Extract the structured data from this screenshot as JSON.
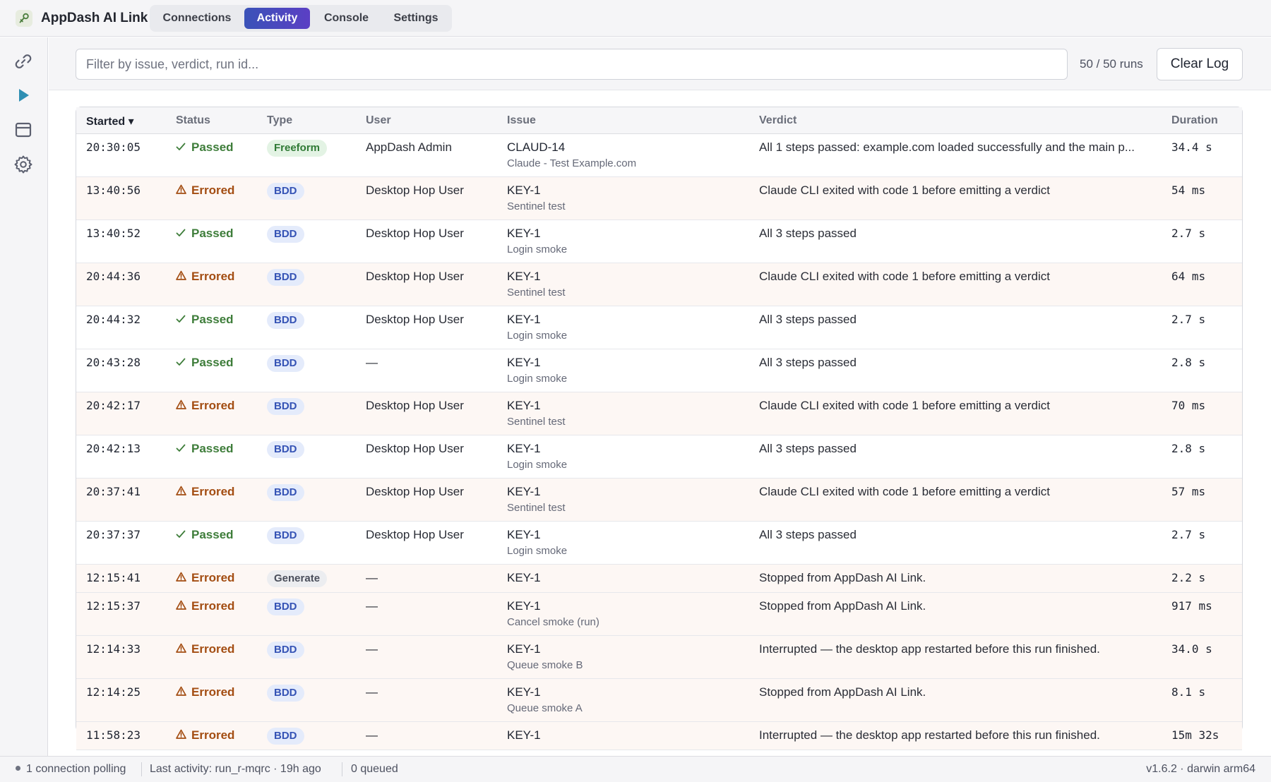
{
  "app": {
    "title": "AppDash AI Link"
  },
  "nav": {
    "tabs": [
      {
        "label": "Connections",
        "active": false
      },
      {
        "label": "Activity",
        "active": true
      },
      {
        "label": "Console",
        "active": false
      },
      {
        "label": "Settings",
        "active": false
      }
    ]
  },
  "sidebar": {
    "items": [
      {
        "icon": "link-icon",
        "active": false
      },
      {
        "icon": "play-icon",
        "active": true
      },
      {
        "icon": "window-icon",
        "active": false
      },
      {
        "icon": "gear-icon",
        "active": false
      }
    ]
  },
  "filter": {
    "placeholder": "Filter by issue, verdict, run id...",
    "value": "",
    "count": "50 / 50 runs",
    "clear_label": "Clear Log"
  },
  "table": {
    "columns": {
      "started": "Started ▾",
      "status": "Status",
      "type": "Type",
      "user": "User",
      "issue": "Issue",
      "verdict": "Verdict",
      "duration": "Duration"
    },
    "rows": [
      {
        "started": "20:30:05",
        "status": "Passed",
        "type": "Freeform",
        "user": "AppDash Admin",
        "issue": "CLAUD-14",
        "issue_sub": "Claude - Test Example.com",
        "verdict": "All 1 steps passed: example.com loaded successfully and the main p...",
        "duration": "34.4 s"
      },
      {
        "started": "13:40:56",
        "status": "Errored",
        "type": "BDD",
        "user": "Desktop Hop User",
        "issue": "KEY-1",
        "issue_sub": "Sentinel test",
        "verdict": "Claude CLI exited with code 1 before emitting a verdict",
        "duration": "54 ms"
      },
      {
        "started": "13:40:52",
        "status": "Passed",
        "type": "BDD",
        "user": "Desktop Hop User",
        "issue": "KEY-1",
        "issue_sub": "Login smoke",
        "verdict": "All 3 steps passed",
        "duration": "2.7 s"
      },
      {
        "started": "20:44:36",
        "status": "Errored",
        "type": "BDD",
        "user": "Desktop Hop User",
        "issue": "KEY-1",
        "issue_sub": "Sentinel test",
        "verdict": "Claude CLI exited with code 1 before emitting a verdict",
        "duration": "64 ms"
      },
      {
        "started": "20:44:32",
        "status": "Passed",
        "type": "BDD",
        "user": "Desktop Hop User",
        "issue": "KEY-1",
        "issue_sub": "Login smoke",
        "verdict": "All 3 steps passed",
        "duration": "2.7 s"
      },
      {
        "started": "20:43:28",
        "status": "Passed",
        "type": "BDD",
        "user": "—",
        "issue": "KEY-1",
        "issue_sub": "Login smoke",
        "verdict": "All 3 steps passed",
        "duration": "2.8 s"
      },
      {
        "started": "20:42:17",
        "status": "Errored",
        "type": "BDD",
        "user": "Desktop Hop User",
        "issue": "KEY-1",
        "issue_sub": "Sentinel test",
        "verdict": "Claude CLI exited with code 1 before emitting a verdict",
        "duration": "70 ms"
      },
      {
        "started": "20:42:13",
        "status": "Passed",
        "type": "BDD",
        "user": "Desktop Hop User",
        "issue": "KEY-1",
        "issue_sub": "Login smoke",
        "verdict": "All 3 steps passed",
        "duration": "2.8 s"
      },
      {
        "started": "20:37:41",
        "status": "Errored",
        "type": "BDD",
        "user": "Desktop Hop User",
        "issue": "KEY-1",
        "issue_sub": "Sentinel test",
        "verdict": "Claude CLI exited with code 1 before emitting a verdict",
        "duration": "57 ms"
      },
      {
        "started": "20:37:37",
        "status": "Passed",
        "type": "BDD",
        "user": "Desktop Hop User",
        "issue": "KEY-1",
        "issue_sub": "Login smoke",
        "verdict": "All 3 steps passed",
        "duration": "2.7 s"
      },
      {
        "started": "12:15:41",
        "status": "Errored",
        "type": "Generate",
        "user": "—",
        "issue": "KEY-1",
        "issue_sub": "",
        "verdict": "Stopped from AppDash AI Link.",
        "duration": "2.2 s"
      },
      {
        "started": "12:15:37",
        "status": "Errored",
        "type": "BDD",
        "user": "—",
        "issue": "KEY-1",
        "issue_sub": "Cancel smoke (run)",
        "verdict": "Stopped from AppDash AI Link.",
        "duration": "917 ms"
      },
      {
        "started": "12:14:33",
        "status": "Errored",
        "type": "BDD",
        "user": "—",
        "issue": "KEY-1",
        "issue_sub": "Queue smoke B",
        "verdict": "Interrupted — the desktop app restarted before this run finished.",
        "duration": "34.0 s"
      },
      {
        "started": "12:14:25",
        "status": "Errored",
        "type": "BDD",
        "user": "—",
        "issue": "KEY-1",
        "issue_sub": "Queue smoke A",
        "verdict": "Stopped from AppDash AI Link.",
        "duration": "8.1 s"
      },
      {
        "started": "11:58:23",
        "status": "Errored",
        "type": "BDD",
        "user": "—",
        "issue": "KEY-1",
        "issue_sub": "",
        "verdict": "Interrupted — the desktop app restarted before this run finished.",
        "duration": "15m 32s"
      }
    ]
  },
  "statusbar": {
    "connections": "1 connection polling",
    "last_activity": "Last activity: run_r-mqrc · 19h ago",
    "queued": "0 queued",
    "version": "v1.6.2 · darwin arm64"
  },
  "colors": {
    "accent": "#3f51b5",
    "passed": "#3e7d3a",
    "errored": "#a34d12",
    "errored_row_bg": "#fdf7f4"
  }
}
